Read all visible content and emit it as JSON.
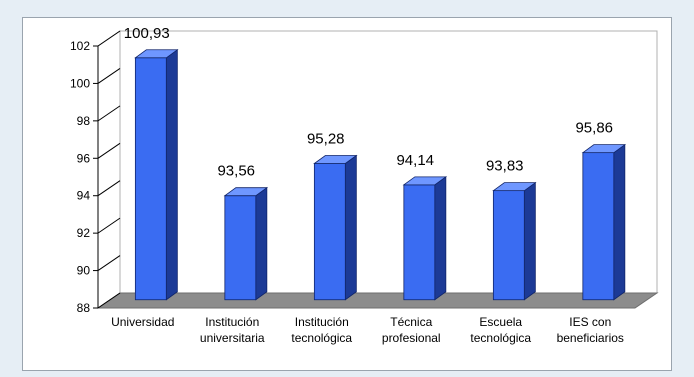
{
  "chart_data": {
    "type": "bar",
    "categories": [
      [
        "Universidad"
      ],
      [
        "Institución",
        "universitaria"
      ],
      [
        "Institución",
        "tecnológica"
      ],
      [
        "Técnica",
        "profesional"
      ],
      [
        "Escuela",
        "tecnológica"
      ],
      [
        "IES con",
        "beneficiarios"
      ]
    ],
    "values": [
      100.93,
      93.56,
      95.28,
      94.14,
      93.83,
      95.86
    ],
    "value_labels": [
      "100,93",
      "93,56",
      "95,28",
      "94,14",
      "93,83",
      "95,86"
    ],
    "ylim": [
      88,
      102
    ],
    "yticks": [
      "88",
      "90",
      "92",
      "94",
      "96",
      "98",
      "100",
      "102"
    ],
    "title": "",
    "xlabel": "",
    "ylabel": "",
    "grid": false,
    "colors": {
      "bar_front": "#3a6cf2",
      "bar_side": "#1c3a96",
      "bar_top": "#6f97ff",
      "floor": "#8c8c8c",
      "walls": "#ffffff"
    }
  }
}
